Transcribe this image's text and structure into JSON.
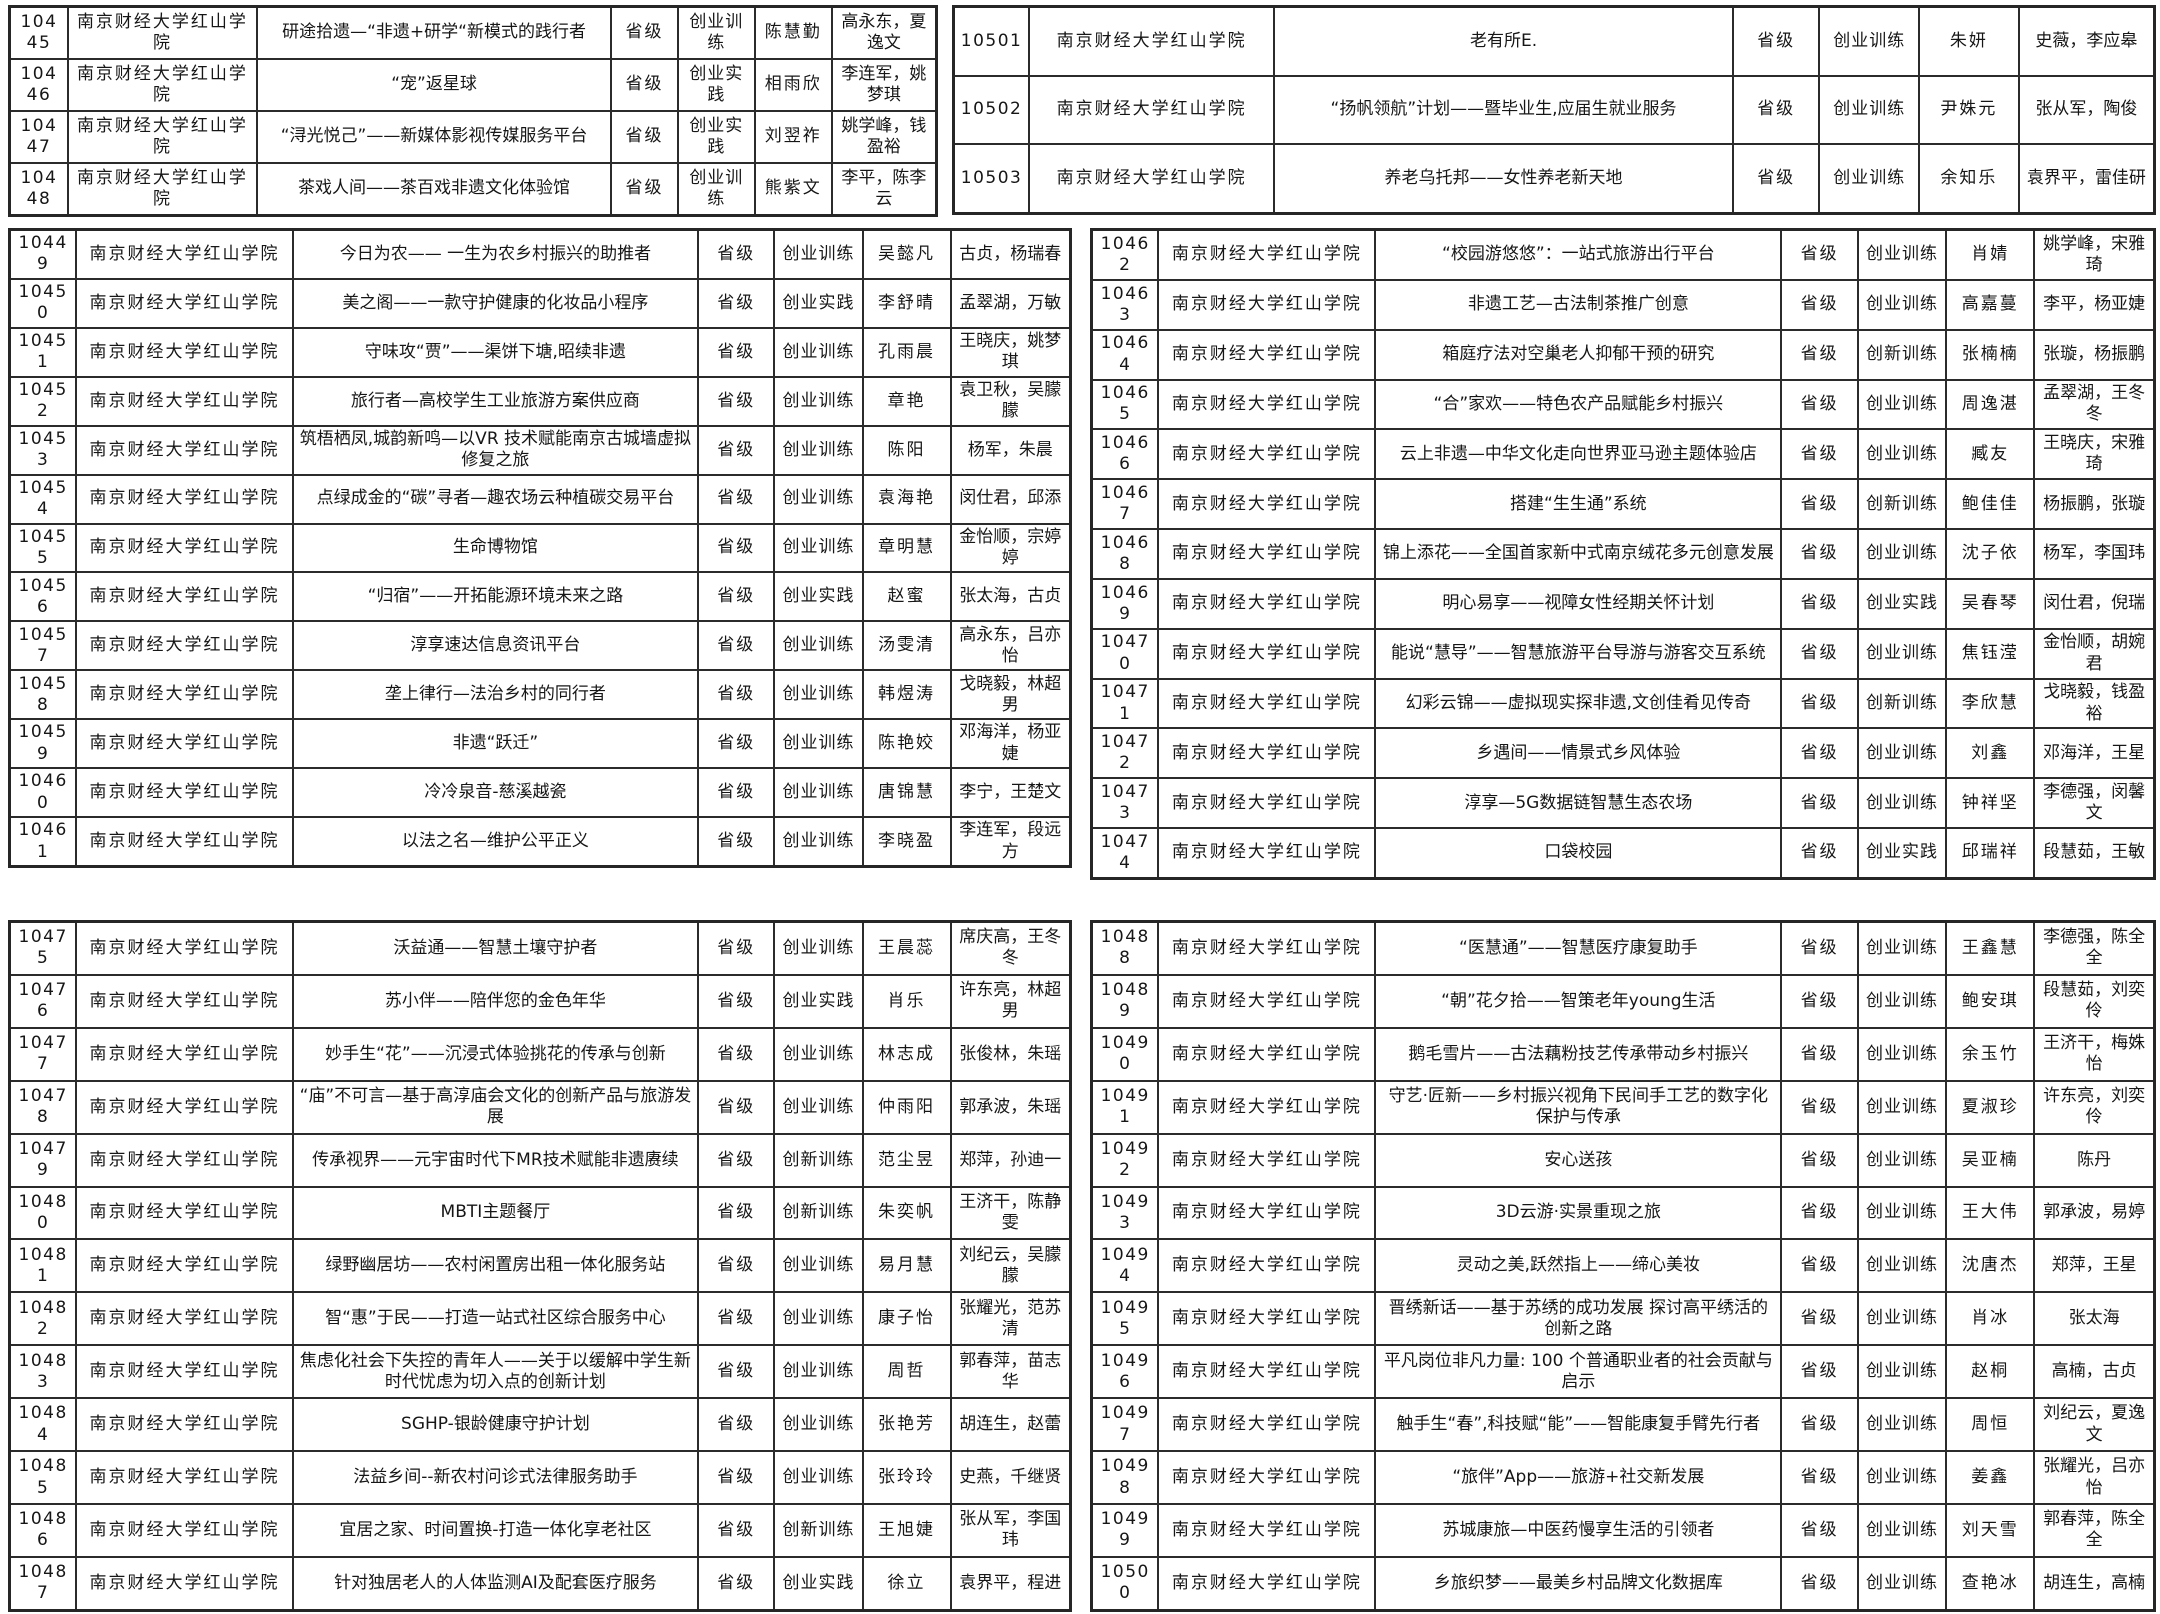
{
  "document": {
    "school_name": "南京财经大学红山学院",
    "level_value": "省级",
    "category_values": [
      "创业训练",
      "创业实践",
      "创新训练"
    ],
    "colors": {
      "background": "#ffffff",
      "border": "#262626",
      "text": "#161616"
    }
  },
  "tables": {
    "top_left": [
      {
        "id": "10445",
        "school": "南京财经大学红山学院",
        "title": "研途拾遗—“非遗+研学“新模式的践行者",
        "level": "省级",
        "category": "创业训练",
        "leader": "陈慧勤",
        "members": "高永东，夏逸文"
      },
      {
        "id": "10446",
        "school": "南京财经大学红山学院",
        "title": "“宠”返星球",
        "level": "省级",
        "category": "创业实践",
        "leader": "相雨欣",
        "members": "李连军，姚梦琪"
      },
      {
        "id": "10447",
        "school": "南京财经大学红山学院",
        "title": "“浔光悦己”——新媒体影视传媒服务平台",
        "level": "省级",
        "category": "创业实践",
        "leader": "刘翌祚",
        "members": "姚学峰，钱盈裕"
      },
      {
        "id": "10448",
        "school": "南京财经大学红山学院",
        "title": "茶戏人间——茶百戏非遗文化体验馆",
        "level": "省级",
        "category": "创业训练",
        "leader": "熊紫文",
        "members": "李平，陈李云"
      }
    ],
    "top_right": [
      {
        "id": "10501",
        "school": "南京财经大学红山学院",
        "title": "老有所E.",
        "level": "省级",
        "category": "创业训练",
        "leader": "朱妍",
        "members": "史薇，李应皋"
      },
      {
        "id": "10502",
        "school": "南京财经大学红山学院",
        "title": "“扬帆领航”计划——暨毕业生,应届生就业服务",
        "level": "省级",
        "category": "创业训练",
        "leader": "尹姝元",
        "members": "张从军，陶俊"
      },
      {
        "id": "10503",
        "school": "南京财经大学红山学院",
        "title": "养老乌托邦——女性养老新天地",
        "level": "省级",
        "category": "创业训练",
        "leader": "余知乐",
        "members": "袁界平，雷佳研"
      }
    ],
    "mid_left": [
      {
        "id": "10449",
        "school": "南京财经大学红山学院",
        "title": "今日为农—— 一生为农乡村振兴的助推者",
        "level": "省级",
        "category": "创业训练",
        "leader": "吴懿凡",
        "members": "古贞，杨瑞春"
      },
      {
        "id": "10450",
        "school": "南京财经大学红山学院",
        "title": "美之阁——一款守护健康的化妆品小程序",
        "level": "省级",
        "category": "创业实践",
        "leader": "李舒晴",
        "members": "孟翠湖，万敏"
      },
      {
        "id": "10451",
        "school": "南京财经大学红山学院",
        "title": "守味攻“贾”——渠饼下塘,昭续非遗",
        "level": "省级",
        "category": "创业训练",
        "leader": "孔雨晨",
        "members": "王晓庆，姚梦琪"
      },
      {
        "id": "10452",
        "school": "南京财经大学红山学院",
        "title": "旅行者—高校学生工业旅游方案供应商",
        "level": "省级",
        "category": "创业训练",
        "leader": "章艳",
        "members": "袁卫秋，吴朦朦"
      },
      {
        "id": "10453",
        "school": "南京财经大学红山学院",
        "title": "筑梧栖凤,城韵新鸣—以VR 技术赋能南京古城墙虚拟修复之旅",
        "level": "省级",
        "category": "创业训练",
        "leader": "陈阳",
        "members": "杨军，朱晨"
      },
      {
        "id": "10454",
        "school": "南京财经大学红山学院",
        "title": "点绿成金的“碳”寻者—趣农场云种植碳交易平台",
        "level": "省级",
        "category": "创业训练",
        "leader": "袁海艳",
        "members": "闵仕君，邱添"
      },
      {
        "id": "10455",
        "school": "南京财经大学红山学院",
        "title": "生命博物馆",
        "level": "省级",
        "category": "创业训练",
        "leader": "章明慧",
        "members": "金怡顺，宗婷婷"
      },
      {
        "id": "10456",
        "school": "南京财经大学红山学院",
        "title": "“归宿”——开拓能源环境未来之路",
        "level": "省级",
        "category": "创业实践",
        "leader": "赵蜜",
        "members": "张太海，古贞"
      },
      {
        "id": "10457",
        "school": "南京财经大学红山学院",
        "title": "淳享速达信息资讯平台",
        "level": "省级",
        "category": "创业训练",
        "leader": "汤雯清",
        "members": "高永东，吕亦怡"
      },
      {
        "id": "10458",
        "school": "南京财经大学红山学院",
        "title": "垄上律行—法治乡村的同行者",
        "level": "省级",
        "category": "创业训练",
        "leader": "韩煜涛",
        "members": "戈晓毅，林超男"
      },
      {
        "id": "10459",
        "school": "南京财经大学红山学院",
        "title": "非遗“跃迁”",
        "level": "省级",
        "category": "创业训练",
        "leader": "陈艳姣",
        "members": "邓海洋，杨亚婕"
      },
      {
        "id": "10460",
        "school": "南京财经大学红山学院",
        "title": "冷冷泉音-慈溪越瓷",
        "level": "省级",
        "category": "创业训练",
        "leader": "唐锦慧",
        "members": "李宁，王楚文"
      },
      {
        "id": "10461",
        "school": "南京财经大学红山学院",
        "title": "以法之名—维护公平正义",
        "level": "省级",
        "category": "创业训练",
        "leader": "李晓盈",
        "members": "李连军，段远方"
      }
    ],
    "mid_right": [
      {
        "id": "10462",
        "school": "南京财经大学红山学院",
        "title": "“校园游悠悠”：一站式旅游出行平台",
        "level": "省级",
        "category": "创业训练",
        "leader": "肖婧",
        "members": "姚学峰，宋雅琦"
      },
      {
        "id": "10463",
        "school": "南京财经大学红山学院",
        "title": "非遗工艺—古法制茶推广创意",
        "level": "省级",
        "category": "创业训练",
        "leader": "高嘉蔓",
        "members": "李平，杨亚婕"
      },
      {
        "id": "10464",
        "school": "南京财经大学红山学院",
        "title": "箱庭疗法对空巢老人抑郁干预的研究",
        "level": "省级",
        "category": "创新训练",
        "leader": "张楠楠",
        "members": "张璇，杨振鹏"
      },
      {
        "id": "10465",
        "school": "南京财经大学红山学院",
        "title": "“合”家欢——特色农产品赋能乡村振兴",
        "level": "省级",
        "category": "创业训练",
        "leader": "周逸湛",
        "members": "孟翠湖，王冬冬"
      },
      {
        "id": "10466",
        "school": "南京财经大学红山学院",
        "title": "云上非遗—中华文化走向世界亚马逊主题体验店",
        "level": "省级",
        "category": "创业训练",
        "leader": "臧友",
        "members": "王晓庆，宋雅琦"
      },
      {
        "id": "10467",
        "school": "南京财经大学红山学院",
        "title": "搭建“生生通”系统",
        "level": "省级",
        "category": "创新训练",
        "leader": "鲍佳佳",
        "members": "杨振鹏，张璇"
      },
      {
        "id": "10468",
        "school": "南京财经大学红山学院",
        "title": "锦上添花——全国首家新中式南京绒花多元创意发展",
        "level": "省级",
        "category": "创业训练",
        "leader": "沈子依",
        "members": "杨军，李国玮"
      },
      {
        "id": "10469",
        "school": "南京财经大学红山学院",
        "title": "明心易享——视障女性经期关怀计划",
        "level": "省级",
        "category": "创业实践",
        "leader": "吴春琴",
        "members": "闵仕君，倪瑞"
      },
      {
        "id": "10470",
        "school": "南京财经大学红山学院",
        "title": "能说“慧导”——智慧旅游平台导游与游客交互系统",
        "level": "省级",
        "category": "创业训练",
        "leader": "焦钰滢",
        "members": "金怡顺，胡婉君"
      },
      {
        "id": "10471",
        "school": "南京财经大学红山学院",
        "title": "幻彩云锦——虚拟现实探非遗,文创佳肴见传奇",
        "level": "省级",
        "category": "创新训练",
        "leader": "李欣慧",
        "members": "戈晓毅，钱盈裕"
      },
      {
        "id": "10472",
        "school": "南京财经大学红山学院",
        "title": "乡遇间——情景式乡风体验",
        "level": "省级",
        "category": "创业训练",
        "leader": "刘鑫",
        "members": "邓海洋，王星"
      },
      {
        "id": "10473",
        "school": "南京财经大学红山学院",
        "title": "淳享—5G数据链智慧生态农场",
        "level": "省级",
        "category": "创业训练",
        "leader": "钟祥坚",
        "members": "李德强，闵馨文"
      },
      {
        "id": "10474",
        "school": "南京财经大学红山学院",
        "title": "口袋校园",
        "level": "省级",
        "category": "创业实践",
        "leader": "邱瑞祥",
        "members": "段慧茹，王敏"
      }
    ],
    "bottom_left": [
      {
        "id": "10475",
        "school": "南京财经大学红山学院",
        "title": "沃益通——智慧土壤守护者",
        "level": "省级",
        "category": "创业训练",
        "leader": "王晨蕊",
        "members": "席庆高，王冬冬"
      },
      {
        "id": "10476",
        "school": "南京财经大学红山学院",
        "title": "苏小伴——陪伴您的金色年华",
        "level": "省级",
        "category": "创业实践",
        "leader": "肖乐",
        "members": "许东亮，林超男"
      },
      {
        "id": "10477",
        "school": "南京财经大学红山学院",
        "title": "妙手生“花”——沉浸式体验挑花的传承与创新",
        "level": "省级",
        "category": "创业训练",
        "leader": "林志成",
        "members": "张俊林，朱瑶"
      },
      {
        "id": "10478",
        "school": "南京财经大学红山学院",
        "title": "“庙”不可言—基于高淳庙会文化的创新产品与旅游发展",
        "level": "省级",
        "category": "创业训练",
        "leader": "仲雨阳",
        "members": "郭承波，朱瑶"
      },
      {
        "id": "10479",
        "school": "南京财经大学红山学院",
        "title": "传承视界——元宇宙时代下MR技术赋能非遗赓续",
        "level": "省级",
        "category": "创新训练",
        "leader": "范尘昱",
        "members": "郑萍，孙迪一"
      },
      {
        "id": "10480",
        "school": "南京财经大学红山学院",
        "title": "MBTI主题餐厅",
        "level": "省级",
        "category": "创新训练",
        "leader": "朱奕帆",
        "members": "王济干，陈静雯"
      },
      {
        "id": "10481",
        "school": "南京财经大学红山学院",
        "title": "绿野幽居坊——农村闲置房出租一体化服务站",
        "level": "省级",
        "category": "创业训练",
        "leader": "易月慧",
        "members": "刘纪云，吴朦朦"
      },
      {
        "id": "10482",
        "school": "南京财经大学红山学院",
        "title": "智“惠”于民——打造一站式社区综合服务中心",
        "level": "省级",
        "category": "创业训练",
        "leader": "康子怡",
        "members": "张耀光，范苏清"
      },
      {
        "id": "10483",
        "school": "南京财经大学红山学院",
        "title": "焦虑化社会下失控的青年人——关于以缓解中学生新时代忧虑为切入点的创新计划",
        "level": "省级",
        "category": "创业训练",
        "leader": "周哲",
        "members": "郭春萍，苗志华"
      },
      {
        "id": "10484",
        "school": "南京财经大学红山学院",
        "title": "SGHP-银龄健康守护计划",
        "level": "省级",
        "category": "创业训练",
        "leader": "张艳芳",
        "members": "胡连生，赵蕾"
      },
      {
        "id": "10485",
        "school": "南京财经大学红山学院",
        "title": "法益乡间--新农村问诊式法律服务助手",
        "level": "省级",
        "category": "创业训练",
        "leader": "张玲玲",
        "members": "史燕，千继贤"
      },
      {
        "id": "10486",
        "school": "南京财经大学红山学院",
        "title": "宜居之家、时间置换-打造一体化享老社区",
        "level": "省级",
        "category": "创新训练",
        "leader": "王旭婕",
        "members": "张从军，李国玮"
      },
      {
        "id": "10487",
        "school": "南京财经大学红山学院",
        "title": "针对独居老人的人体监测AI及配套医疗服务",
        "level": "省级",
        "category": "创业实践",
        "leader": "徐立",
        "members": "袁界平，程进"
      }
    ],
    "bottom_right": [
      {
        "id": "10488",
        "school": "南京财经大学红山学院",
        "title": "“医慧通”——智慧医疗康复助手",
        "level": "省级",
        "category": "创业训练",
        "leader": "王鑫慧",
        "members": "李德强，陈全全"
      },
      {
        "id": "10489",
        "school": "南京财经大学红山学院",
        "title": "“朝”花夕拾——智策老年young生活",
        "level": "省级",
        "category": "创业训练",
        "leader": "鲍安琪",
        "members": "段慧茹，刘奕伶"
      },
      {
        "id": "10490",
        "school": "南京财经大学红山学院",
        "title": "鹅毛雪片——古法藕粉技艺传承带动乡村振兴",
        "level": "省级",
        "category": "创业训练",
        "leader": "余玉竹",
        "members": "王济干，梅姝怡"
      },
      {
        "id": "10491",
        "school": "南京财经大学红山学院",
        "title": "守艺·匠新——乡村振兴视角下民间手工艺的数字化保护与传承",
        "level": "省级",
        "category": "创业训练",
        "leader": "夏淑珍",
        "members": "许东亮，刘奕伶"
      },
      {
        "id": "10492",
        "school": "南京财经大学红山学院",
        "title": "安心送孩",
        "level": "省级",
        "category": "创业训练",
        "leader": "吴亚楠",
        "members": "陈丹"
      },
      {
        "id": "10493",
        "school": "南京财经大学红山学院",
        "title": "3D云游·实景重现之旅",
        "level": "省级",
        "category": "创业训练",
        "leader": "王大伟",
        "members": "郭承波，易婷"
      },
      {
        "id": "10494",
        "school": "南京财经大学红山学院",
        "title": "灵动之美,跃然指上——缔心美妆",
        "level": "省级",
        "category": "创业训练",
        "leader": "沈唐杰",
        "members": "郑萍，王星"
      },
      {
        "id": "10495",
        "school": "南京财经大学红山学院",
        "title": "晋绣新话——基于苏绣的成功发展 探讨高平绣活的创新之路",
        "level": "省级",
        "category": "创业训练",
        "leader": "肖冰",
        "members": "张太海"
      },
      {
        "id": "10496",
        "school": "南京财经大学红山学院",
        "title": "平凡岗位非凡力量: 100 个普通职业者的社会贡献与启示",
        "level": "省级",
        "category": "创业训练",
        "leader": "赵桐",
        "members": "高楠，古贞"
      },
      {
        "id": "10497",
        "school": "南京财经大学红山学院",
        "title": "触手生“春”,科技赋“能”——智能康复手臂先行者",
        "level": "省级",
        "category": "创业训练",
        "leader": "周恒",
        "members": "刘纪云，夏逸文"
      },
      {
        "id": "10498",
        "school": "南京财经大学红山学院",
        "title": "“旅伴”App——旅游+社交新发展",
        "level": "省级",
        "category": "创业训练",
        "leader": "姜鑫",
        "members": "张耀光，吕亦怡"
      },
      {
        "id": "10499",
        "school": "南京财经大学红山学院",
        "title": "苏城康旅—中医药慢享生活的引领者",
        "level": "省级",
        "category": "创业训练",
        "leader": "刘天雪",
        "members": "郭春萍，陈全全"
      },
      {
        "id": "10500",
        "school": "南京财经大学红山学院",
        "title": "乡旅织梦——最美乡村品牌文化数据库",
        "level": "省级",
        "category": "创业训练",
        "leader": "查艳冰",
        "members": "胡连生，高楠"
      }
    ]
  }
}
